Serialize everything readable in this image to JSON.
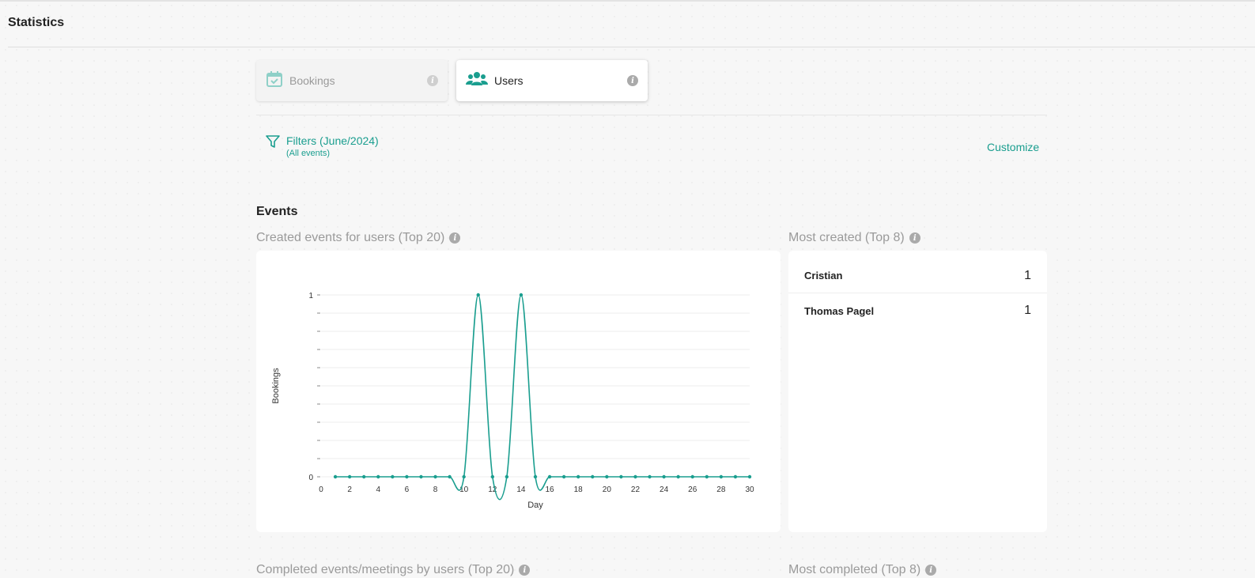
{
  "page": {
    "title": "Statistics"
  },
  "tabs": [
    {
      "label": "Bookings",
      "icon": "calendar-check-icon",
      "active": false
    },
    {
      "label": "Users",
      "icon": "users-icon",
      "active": true
    }
  ],
  "filters": {
    "label": "Filters (June/2024)",
    "sublabel": "(All events)",
    "customize": "Customize"
  },
  "section": {
    "title": "Events"
  },
  "cards": {
    "created_chart_title": "Created events for users (Top 20)",
    "most_created_title": "Most created (Top 8)",
    "completed_chart_title": "Completed events/meetings by users (Top 20)",
    "most_completed_title": "Most completed (Top 8)"
  },
  "most_created": [
    {
      "name": "Cristian",
      "count": "1"
    },
    {
      "name": "Thomas Pagel",
      "count": "1"
    }
  ],
  "colors": {
    "accent": "#1a9e8f"
  },
  "chart_data": {
    "type": "line",
    "xlabel": "Day",
    "ylabel": "Bookings",
    "xlim": [
      0,
      30
    ],
    "ylim": [
      0,
      1
    ],
    "x_ticks": [
      0,
      2,
      4,
      6,
      8,
      10,
      12,
      14,
      16,
      18,
      20,
      22,
      24,
      26,
      28,
      30
    ],
    "y_ticks": [
      0,
      1
    ],
    "grid": true,
    "series": [
      {
        "x": [
          1,
          2,
          3,
          4,
          5,
          6,
          7,
          8,
          9,
          10,
          11,
          12,
          13,
          14,
          15,
          16,
          17,
          18,
          19,
          20,
          21,
          22,
          23,
          24,
          25,
          26,
          27,
          28,
          29,
          30
        ],
        "values": [
          0,
          0,
          0,
          0,
          0,
          0,
          0,
          0,
          0,
          0,
          1,
          0,
          0,
          1,
          0,
          0,
          0,
          0,
          0,
          0,
          0,
          0,
          0,
          0,
          0,
          0,
          0,
          0,
          0,
          0
        ]
      }
    ]
  }
}
